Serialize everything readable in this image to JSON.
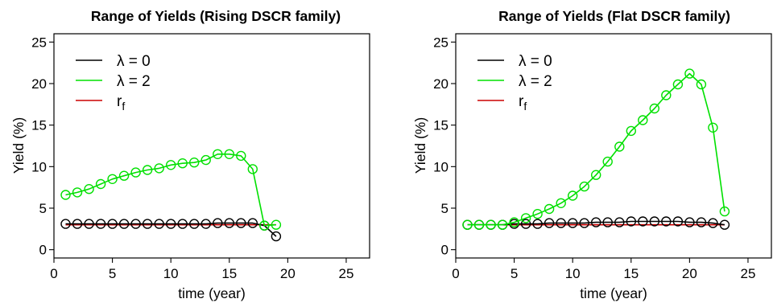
{
  "chart_data": [
    {
      "type": "line",
      "title": "Range of Yields (Rising DSCR family)",
      "xlabel": "time (year)",
      "ylabel": "Yield (%)",
      "xlim": [
        0,
        27
      ],
      "ylim": [
        -1,
        26
      ],
      "xticks": [
        0,
        5,
        10,
        15,
        20,
        25
      ],
      "yticks": [
        0,
        5,
        10,
        15,
        20,
        25
      ],
      "grid": false,
      "legend_position": "top-left",
      "legend": [
        {
          "label": "λ = 0",
          "color": "#000000"
        },
        {
          "label": "λ = 2",
          "color": "#00e000"
        },
        {
          "label": "r",
          "sub": "f",
          "color": "#cc0000"
        }
      ],
      "series": [
        {
          "name": "λ = 0",
          "color": "#000000",
          "markers": true,
          "x": [
            1,
            2,
            3,
            4,
            5,
            6,
            7,
            8,
            9,
            10,
            11,
            12,
            13,
            14,
            15,
            16,
            17,
            18,
            19
          ],
          "y": [
            3.1,
            3.1,
            3.1,
            3.1,
            3.1,
            3.1,
            3.1,
            3.1,
            3.1,
            3.1,
            3.1,
            3.1,
            3.1,
            3.2,
            3.2,
            3.2,
            3.2,
            2.9,
            1.6
          ]
        },
        {
          "name": "λ = 2",
          "color": "#00e000",
          "markers": true,
          "x": [
            1,
            2,
            3,
            4,
            5,
            6,
            7,
            8,
            9,
            10,
            11,
            12,
            13,
            14,
            15,
            16,
            17,
            18,
            19
          ],
          "y": [
            6.6,
            6.9,
            7.3,
            7.9,
            8.5,
            8.9,
            9.3,
            9.6,
            9.8,
            10.2,
            10.4,
            10.5,
            10.8,
            11.5,
            11.5,
            11.3,
            9.7,
            2.9,
            3.0
          ]
        },
        {
          "name": "r",
          "color": "#cc0000",
          "markers": false,
          "x": [
            1,
            19
          ],
          "y": [
            3.0,
            3.0
          ]
        }
      ]
    },
    {
      "type": "line",
      "title": "Range of Yields (Flat DSCR family)",
      "xlabel": "time (year)",
      "ylabel": "Yield (%)",
      "xlim": [
        0,
        27
      ],
      "ylim": [
        -1,
        26
      ],
      "xticks": [
        0,
        5,
        10,
        15,
        20,
        25
      ],
      "yticks": [
        0,
        5,
        10,
        15,
        20,
        25
      ],
      "grid": false,
      "legend_position": "top-left",
      "legend": [
        {
          "label": "λ = 0",
          "color": "#000000"
        },
        {
          "label": "λ = 2",
          "color": "#00e000"
        },
        {
          "label": "r",
          "sub": "f",
          "color": "#cc0000"
        }
      ],
      "series": [
        {
          "name": "λ = 0",
          "color": "#000000",
          "markers": true,
          "x": [
            1,
            2,
            3,
            4,
            5,
            6,
            7,
            8,
            9,
            10,
            11,
            12,
            13,
            14,
            15,
            16,
            17,
            18,
            19,
            20,
            21,
            22,
            23
          ],
          "y": [
            3.0,
            3.0,
            3.0,
            3.0,
            3.1,
            3.1,
            3.1,
            3.2,
            3.2,
            3.2,
            3.2,
            3.3,
            3.3,
            3.3,
            3.4,
            3.4,
            3.4,
            3.4,
            3.4,
            3.3,
            3.3,
            3.2,
            3.0
          ]
        },
        {
          "name": "λ = 2",
          "color": "#00e000",
          "markers": true,
          "x": [
            1,
            2,
            3,
            4,
            5,
            6,
            7,
            8,
            9,
            10,
            11,
            12,
            13,
            14,
            15,
            16,
            17,
            18,
            19,
            20,
            21,
            22,
            23
          ],
          "y": [
            3.0,
            3.0,
            3.0,
            3.0,
            3.3,
            3.8,
            4.3,
            4.9,
            5.6,
            6.5,
            7.6,
            9.0,
            10.6,
            12.4,
            14.3,
            15.6,
            17.0,
            18.6,
            19.9,
            21.2,
            19.9,
            14.7,
            4.6
          ]
        },
        {
          "name": "r",
          "color": "#cc0000",
          "markers": false,
          "x": [
            1,
            23
          ],
          "y": [
            3.0,
            3.0
          ]
        }
      ]
    }
  ]
}
